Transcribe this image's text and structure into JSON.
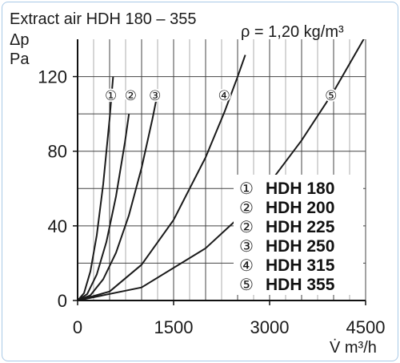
{
  "chart_data": {
    "type": "line",
    "title": "Extract air HDH 180 – 355",
    "density_note": "ρ = 1,20 kg/m³",
    "ylabel_symbol": "Δp",
    "ylabel_unit": "Pa",
    "xlabel": "V̇ m³/h",
    "xlim": [
      0,
      4500
    ],
    "ylim": [
      0,
      140
    ],
    "x_ticks": [
      {
        "value": 0,
        "label": "0"
      },
      {
        "value": 1500,
        "label": "1500"
      },
      {
        "value": 3000,
        "label": "3000"
      },
      {
        "value": 4500,
        "label": "4500"
      }
    ],
    "y_ticks": [
      {
        "value": 0,
        "label": "0"
      },
      {
        "value": 40,
        "label": "40"
      },
      {
        "value": 80,
        "label": "80"
      },
      {
        "value": 120,
        "label": "120"
      }
    ],
    "grid": true,
    "legend_position": "right",
    "legend": [
      {
        "marker": "①",
        "label": "HDH 180"
      },
      {
        "marker": "②",
        "label": "HDH 200"
      },
      {
        "marker": "②",
        "label": "HDH 225"
      },
      {
        "marker": "③",
        "label": "HDH 250"
      },
      {
        "marker": "④",
        "label": "HDH 315"
      },
      {
        "marker": "⑤",
        "label": "HDH 355"
      }
    ],
    "series": [
      {
        "name": "①",
        "x": [
          0,
          100,
          200,
          300,
          400,
          500,
          555
        ],
        "y": [
          0,
          3.9,
          15.6,
          35.1,
          62.3,
          97.4,
          120
        ]
      },
      {
        "name": "②",
        "x": [
          0,
          150,
          300,
          450,
          600,
          740,
          803
        ],
        "y": [
          0,
          3.5,
          14,
          31.4,
          55.8,
          84.9,
          100
        ]
      },
      {
        "name": "③",
        "x": [
          0,
          200,
          400,
          600,
          800,
          1000,
          1170,
          1250
        ],
        "y": [
          0,
          2.8,
          11.4,
          25.6,
          45.5,
          71.1,
          97.4,
          111.1
        ]
      },
      {
        "name": "④",
        "x": [
          0,
          500,
          1000,
          1500,
          2000,
          2300,
          2500,
          2620
        ],
        "y": [
          0,
          4.8,
          19.2,
          43.2,
          76.7,
          101.5,
          119.9,
          131.6
        ]
      },
      {
        "name": "⑤",
        "x": [
          0,
          1000,
          2000,
          2500,
          3000,
          3500,
          4000,
          4500
        ],
        "y": [
          0,
          7,
          28,
          43.8,
          63,
          85.8,
          112,
          141.8
        ]
      }
    ],
    "curve_labels": [
      {
        "text": "①",
        "x": 520,
        "y": 110
      },
      {
        "text": "②",
        "x": 830,
        "y": 110
      },
      {
        "text": "③",
        "x": 1210,
        "y": 110
      },
      {
        "text": "④",
        "x": 2290,
        "y": 110
      },
      {
        "text": "⑤",
        "x": 3960,
        "y": 110
      }
    ]
  }
}
